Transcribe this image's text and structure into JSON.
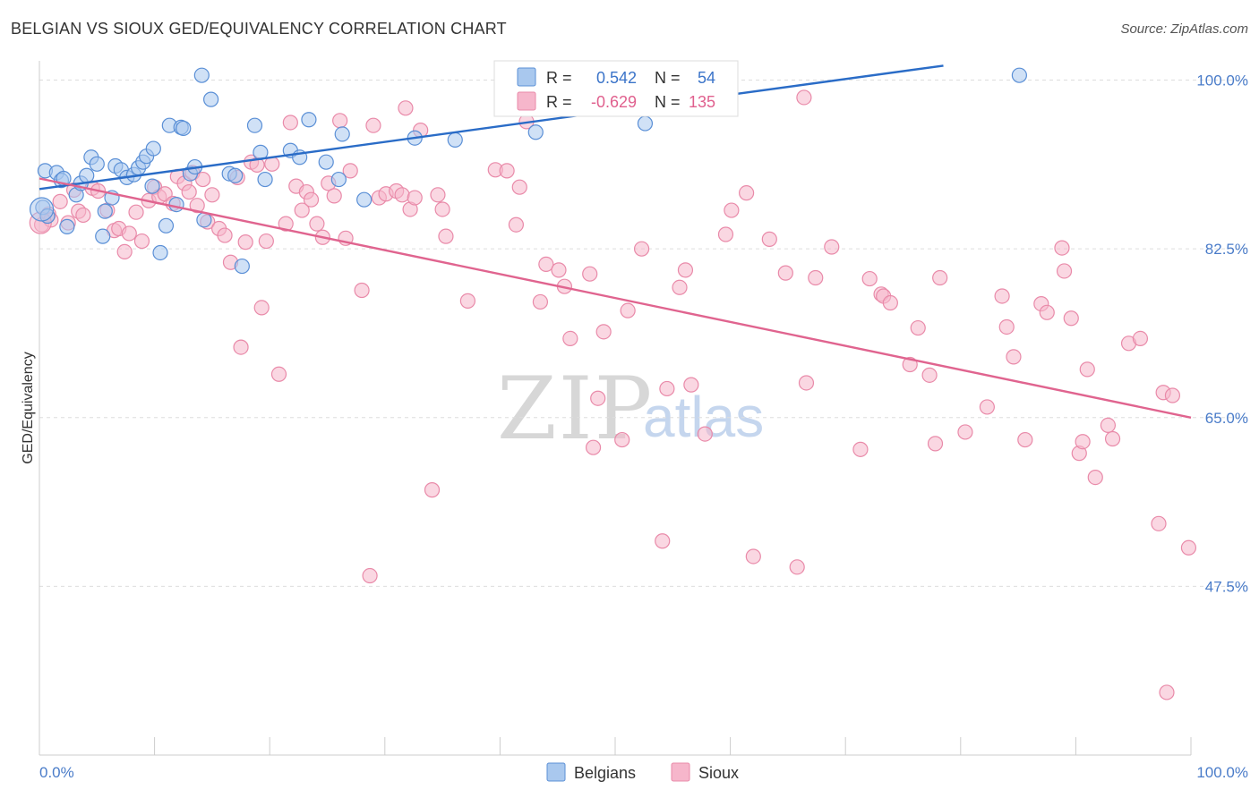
{
  "title": "BELGIAN VS SIOUX GED/EQUIVALENCY CORRELATION CHART",
  "source": "Source: ZipAtlas.com",
  "watermark": {
    "zip": "ZIP",
    "atlas": "atlas"
  },
  "colors": {
    "belgians_fill": "#a9c8ee",
    "belgians_stroke": "#5a8fd6",
    "belgians_line": "#2a6cc7",
    "sioux_fill": "#f6b6cb",
    "sioux_stroke": "#e98aa9",
    "sioux_line": "#e0648f",
    "tick_label": "#4a7cc9",
    "grid": "#dddddd"
  },
  "stats": {
    "r_label": "R =",
    "n_label": "N =",
    "belgians": {
      "r": "0.542",
      "n": "54"
    },
    "sioux": {
      "r": "-0.629",
      "n": "135"
    }
  },
  "chart_data": {
    "type": "scatter",
    "title": "BELGIAN VS SIOUX GED/EQUIVALENCY CORRELATION CHART",
    "xlabel": "",
    "ylabel": "GED/Equivalency",
    "xlim": [
      0,
      100
    ],
    "ylim": [
      30,
      102
    ],
    "x_tick_labels": [
      "0.0%",
      "100.0%"
    ],
    "y_ticks": [
      {
        "v": 100,
        "label": "100.0%"
      },
      {
        "v": 82.5,
        "label": "82.5%"
      },
      {
        "v": 65,
        "label": "65.0%"
      },
      {
        "v": 47.5,
        "label": "47.5%"
      }
    ],
    "grid": true,
    "legend_position": "bottom-center",
    "series": [
      {
        "name": "Belgians",
        "trend": [
          [
            0,
            88.7
          ],
          [
            78.5,
            101.5
          ]
        ],
        "points": [
          [
            0.3,
            86.8
          ],
          [
            0.5,
            90.6
          ],
          [
            0.7,
            85.9
          ],
          [
            1.5,
            90.4
          ],
          [
            1.9,
            89.6
          ],
          [
            2.1,
            89.8
          ],
          [
            2.4,
            84.8
          ],
          [
            3.2,
            88.1
          ],
          [
            3.6,
            89.3
          ],
          [
            4.1,
            90.1
          ],
          [
            4.5,
            92.0
          ],
          [
            5.0,
            91.3
          ],
          [
            5.5,
            83.8
          ],
          [
            5.7,
            86.4
          ],
          [
            6.3,
            87.8
          ],
          [
            6.6,
            91.1
          ],
          [
            7.1,
            90.7
          ],
          [
            7.6,
            89.9
          ],
          [
            8.2,
            90.2
          ],
          [
            8.6,
            90.9
          ],
          [
            9.0,
            91.5
          ],
          [
            9.3,
            92.1
          ],
          [
            9.9,
            92.9
          ],
          [
            9.8,
            89.0
          ],
          [
            10.5,
            82.1
          ],
          [
            11.0,
            84.9
          ],
          [
            11.3,
            95.3
          ],
          [
            11.9,
            87.1
          ],
          [
            12.3,
            95.1
          ],
          [
            12.5,
            95.0
          ],
          [
            13.1,
            90.3
          ],
          [
            13.5,
            91.0
          ],
          [
            14.1,
            100.5
          ],
          [
            14.3,
            85.5
          ],
          [
            14.9,
            98.0
          ],
          [
            16.5,
            90.3
          ],
          [
            17.0,
            90.1
          ],
          [
            17.6,
            80.7
          ],
          [
            18.7,
            95.3
          ],
          [
            19.2,
            92.5
          ],
          [
            19.6,
            89.7
          ],
          [
            21.8,
            92.7
          ],
          [
            22.6,
            92.0
          ],
          [
            23.4,
            95.9
          ],
          [
            24.9,
            91.5
          ],
          [
            26.0,
            89.7
          ],
          [
            26.3,
            94.4
          ],
          [
            28.2,
            87.6
          ],
          [
            32.6,
            94.0
          ],
          [
            36.1,
            93.8
          ],
          [
            43.1,
            94.6
          ],
          [
            52.3,
            101.1
          ],
          [
            52.6,
            95.5
          ],
          [
            85.1,
            100.5
          ]
        ]
      },
      {
        "name": "Sioux",
        "trend": [
          [
            0,
            89.8
          ],
          [
            100,
            65.0
          ]
        ],
        "points": [
          [
            0.2,
            85.0
          ],
          [
            0.8,
            86.1
          ],
          [
            1.0,
            85.5
          ],
          [
            1.8,
            87.4
          ],
          [
            2.5,
            85.2
          ],
          [
            3.0,
            88.6
          ],
          [
            3.4,
            86.4
          ],
          [
            3.8,
            86.0
          ],
          [
            4.6,
            88.8
          ],
          [
            5.1,
            88.5
          ],
          [
            5.9,
            86.5
          ],
          [
            6.5,
            84.4
          ],
          [
            6.9,
            84.6
          ],
          [
            7.4,
            82.2
          ],
          [
            7.8,
            84.1
          ],
          [
            8.4,
            86.3
          ],
          [
            8.9,
            83.3
          ],
          [
            9.5,
            87.5
          ],
          [
            10.0,
            88.9
          ],
          [
            10.4,
            87.9
          ],
          [
            10.9,
            88.2
          ],
          [
            11.6,
            87.2
          ],
          [
            12.0,
            90.0
          ],
          [
            12.6,
            89.3
          ],
          [
            13.0,
            88.4
          ],
          [
            13.3,
            90.4
          ],
          [
            13.7,
            87.0
          ],
          [
            14.2,
            89.7
          ],
          [
            14.6,
            85.3
          ],
          [
            15.0,
            88.1
          ],
          [
            15.6,
            84.6
          ],
          [
            16.1,
            83.9
          ],
          [
            16.6,
            81.1
          ],
          [
            17.2,
            89.9
          ],
          [
            17.5,
            72.3
          ],
          [
            17.9,
            83.2
          ],
          [
            18.4,
            91.5
          ],
          [
            18.9,
            91.2
          ],
          [
            19.3,
            76.4
          ],
          [
            19.7,
            83.3
          ],
          [
            20.2,
            91.3
          ],
          [
            20.8,
            69.5
          ],
          [
            21.4,
            85.1
          ],
          [
            21.8,
            95.6
          ],
          [
            22.3,
            89.0
          ],
          [
            22.8,
            86.5
          ],
          [
            23.2,
            88.4
          ],
          [
            23.6,
            87.6
          ],
          [
            24.1,
            85.1
          ],
          [
            24.6,
            83.7
          ],
          [
            25.1,
            89.3
          ],
          [
            25.6,
            88.0
          ],
          [
            26.1,
            95.8
          ],
          [
            26.6,
            83.6
          ],
          [
            27.0,
            90.6
          ],
          [
            28.0,
            78.2
          ],
          [
            28.7,
            48.6
          ],
          [
            29.0,
            95.3
          ],
          [
            29.5,
            87.8
          ],
          [
            30.1,
            88.2
          ],
          [
            31.0,
            88.5
          ],
          [
            31.5,
            88.1
          ],
          [
            31.8,
            97.1
          ],
          [
            32.2,
            86.6
          ],
          [
            32.6,
            87.8
          ],
          [
            33.1,
            94.8
          ],
          [
            34.1,
            57.5
          ],
          [
            34.6,
            88.1
          ],
          [
            35.0,
            86.6
          ],
          [
            35.3,
            83.8
          ],
          [
            37.2,
            77.1
          ],
          [
            39.6,
            90.7
          ],
          [
            40.6,
            90.6
          ],
          [
            41.4,
            85.0
          ],
          [
            41.7,
            88.9
          ],
          [
            42.3,
            95.7
          ],
          [
            43.5,
            77.0
          ],
          [
            44.0,
            80.9
          ],
          [
            45.1,
            80.3
          ],
          [
            45.6,
            78.6
          ],
          [
            46.1,
            73.2
          ],
          [
            47.8,
            79.9
          ],
          [
            48.1,
            61.9
          ],
          [
            48.5,
            67.0
          ],
          [
            49.0,
            73.9
          ],
          [
            50.6,
            62.7
          ],
          [
            51.1,
            76.1
          ],
          [
            52.3,
            82.5
          ],
          [
            54.1,
            52.2
          ],
          [
            54.5,
            68.0
          ],
          [
            55.6,
            78.5
          ],
          [
            56.1,
            80.3
          ],
          [
            56.6,
            68.4
          ],
          [
            57.8,
            63.3
          ],
          [
            59.6,
            84.0
          ],
          [
            60.1,
            86.5
          ],
          [
            61.4,
            88.3
          ],
          [
            62.0,
            50.6
          ],
          [
            63.4,
            83.5
          ],
          [
            64.8,
            80.0
          ],
          [
            65.8,
            49.5
          ],
          [
            66.4,
            98.2
          ],
          [
            66.6,
            68.6
          ],
          [
            67.4,
            79.5
          ],
          [
            68.8,
            82.7
          ],
          [
            71.3,
            61.7
          ],
          [
            72.1,
            79.4
          ],
          [
            73.1,
            77.8
          ],
          [
            73.3,
            77.6
          ],
          [
            73.9,
            76.9
          ],
          [
            75.6,
            70.5
          ],
          [
            76.3,
            74.3
          ],
          [
            77.3,
            69.4
          ],
          [
            77.8,
            62.3
          ],
          [
            78.2,
            79.5
          ],
          [
            80.4,
            63.5
          ],
          [
            82.3,
            66.1
          ],
          [
            83.6,
            77.6
          ],
          [
            84.0,
            74.4
          ],
          [
            84.6,
            71.3
          ],
          [
            85.6,
            62.7
          ],
          [
            87.0,
            76.8
          ],
          [
            87.5,
            75.9
          ],
          [
            88.8,
            82.6
          ],
          [
            89.0,
            80.2
          ],
          [
            89.6,
            75.3
          ],
          [
            90.3,
            61.3
          ],
          [
            90.6,
            62.5
          ],
          [
            91.0,
            70.0
          ],
          [
            91.7,
            58.8
          ],
          [
            92.8,
            64.2
          ],
          [
            93.2,
            62.8
          ],
          [
            94.6,
            72.7
          ],
          [
            95.6,
            73.2
          ],
          [
            97.2,
            54.0
          ],
          [
            97.6,
            67.6
          ],
          [
            97.9,
            36.5
          ],
          [
            98.4,
            67.3
          ],
          [
            99.8,
            51.5
          ]
        ]
      }
    ]
  }
}
